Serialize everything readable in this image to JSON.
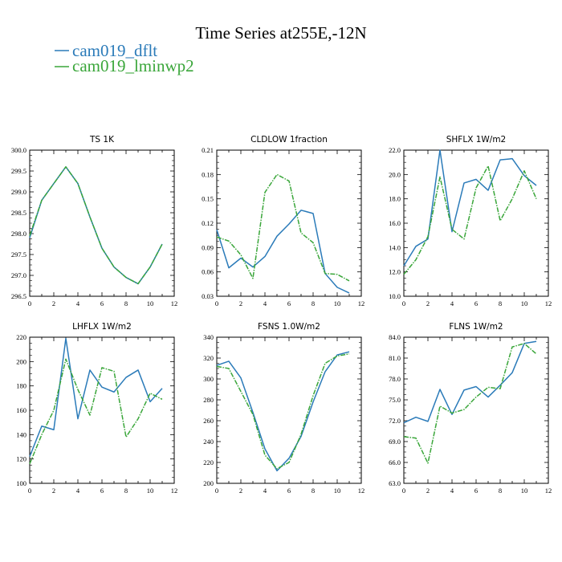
{
  "figure": {
    "title": "Time Series at255E,-12N",
    "legend": [
      {
        "label": "cam019_dflt",
        "color": "#2b7bb9",
        "dash": "solid"
      },
      {
        "label": "cam019_lminwp2",
        "color": "#3aa63a",
        "dash": "dashed"
      }
    ]
  },
  "chart_data": [
    {
      "type": "line",
      "title": "TS   1K",
      "xlim": [
        0,
        12
      ],
      "xticks": [
        0,
        2,
        4,
        6,
        8,
        10,
        12
      ],
      "ylim": [
        296.5,
        300.0
      ],
      "yticks": [
        "296.5",
        "297.0",
        "297.5",
        "298.0",
        "298.5",
        "299.0",
        "299.5",
        "300.0"
      ],
      "x": [
        0,
        1,
        2,
        3,
        4,
        5,
        6,
        7,
        8,
        9,
        10,
        11
      ],
      "series": [
        {
          "name": "cam019_dflt",
          "values": [
            297.9,
            298.8,
            299.2,
            299.6,
            299.2,
            298.4,
            297.65,
            297.2,
            296.95,
            296.8,
            297.2,
            297.75
          ]
        },
        {
          "name": "cam019_lminwp2",
          "values": [
            297.95,
            298.8,
            299.2,
            299.6,
            299.2,
            298.4,
            297.65,
            297.2,
            296.95,
            296.8,
            297.2,
            297.75
          ]
        }
      ]
    },
    {
      "type": "line",
      "title": "CLDLOW   1fraction",
      "xlim": [
        0,
        12
      ],
      "xticks": [
        0,
        2,
        4,
        6,
        8,
        10,
        12
      ],
      "ylim": [
        0.03,
        0.21
      ],
      "yticks": [
        "0.03",
        "0.06",
        "0.09",
        "0.12",
        "0.15",
        "0.18",
        "0.21"
      ],
      "x": [
        0,
        1,
        2,
        3,
        4,
        5,
        6,
        7,
        8,
        9,
        10,
        11
      ],
      "series": [
        {
          "name": "cam019_dflt",
          "values": [
            0.112,
            0.065,
            0.077,
            0.066,
            0.079,
            0.104,
            0.119,
            0.136,
            0.132,
            0.058,
            0.041,
            0.034
          ]
        },
        {
          "name": "cam019_lminwp2",
          "values": [
            0.103,
            0.098,
            0.081,
            0.052,
            0.158,
            0.18,
            0.172,
            0.108,
            0.096,
            0.058,
            0.057,
            0.049
          ]
        }
      ]
    },
    {
      "type": "line",
      "title": "SHFLX   1W/m2",
      "xlim": [
        0,
        12
      ],
      "xticks": [
        0,
        2,
        4,
        6,
        8,
        10,
        12
      ],
      "ylim": [
        10.0,
        22.0
      ],
      "yticks": [
        "10.0",
        "12.0",
        "14.0",
        "16.0",
        "18.0",
        "20.0",
        "22.0"
      ],
      "x": [
        0,
        1,
        2,
        3,
        4,
        5,
        6,
        7,
        8,
        9,
        10,
        11
      ],
      "series": [
        {
          "name": "cam019_dflt",
          "values": [
            12.5,
            14.1,
            14.7,
            22.0,
            15.3,
            19.3,
            19.6,
            18.7,
            21.2,
            21.3,
            19.9,
            19.1
          ]
        },
        {
          "name": "cam019_lminwp2",
          "values": [
            11.8,
            13.0,
            14.9,
            19.8,
            15.5,
            14.7,
            18.9,
            20.7,
            16.2,
            18.0,
            20.3,
            18.0
          ]
        }
      ]
    },
    {
      "type": "line",
      "title": "LHFLX   1W/m2",
      "xlim": [
        0,
        12
      ],
      "xticks": [
        0,
        2,
        4,
        6,
        8,
        10,
        12
      ],
      "ylim": [
        100,
        220
      ],
      "yticks": [
        "100",
        "120",
        "140",
        "160",
        "180",
        "200",
        "220"
      ],
      "x": [
        0,
        1,
        2,
        3,
        4,
        5,
        6,
        7,
        8,
        9,
        10,
        11
      ],
      "series": [
        {
          "name": "cam019_dflt",
          "values": [
            122,
            147,
            144,
            219,
            153,
            193,
            179,
            175,
            187,
            193,
            167,
            178
          ]
        },
        {
          "name": "cam019_lminwp2",
          "values": [
            116,
            140,
            160,
            202,
            177,
            156,
            195,
            192,
            138,
            153,
            174,
            169
          ]
        }
      ]
    },
    {
      "type": "line",
      "title": "FSNS   1.0W/m2",
      "xlim": [
        0,
        12
      ],
      "xticks": [
        0,
        2,
        4,
        6,
        8,
        10,
        12
      ],
      "ylim": [
        200,
        340
      ],
      "yticks": [
        "200",
        "220",
        "240",
        "260",
        "280",
        "300",
        "320",
        "340"
      ],
      "x": [
        0,
        1,
        2,
        3,
        4,
        5,
        6,
        7,
        8,
        9,
        10,
        11
      ],
      "series": [
        {
          "name": "cam019_dflt",
          "values": [
            313,
            317,
            301,
            268,
            233,
            212,
            224,
            245,
            278,
            307,
            323,
            326
          ]
        },
        {
          "name": "cam019_lminwp2",
          "values": [
            312,
            310,
            288,
            266,
            227,
            214,
            220,
            247,
            284,
            315,
            322,
            324
          ]
        }
      ]
    },
    {
      "type": "line",
      "title": "FLNS   1W/m2",
      "xlim": [
        0,
        12
      ],
      "xticks": [
        0,
        2,
        4,
        6,
        8,
        10,
        12
      ],
      "ylim": [
        63.0,
        84.0
      ],
      "yticks": [
        "63.0",
        "66.0",
        "69.0",
        "72.0",
        "75.0",
        "78.0",
        "81.0",
        "84.0"
      ],
      "x": [
        0,
        1,
        2,
        3,
        4,
        5,
        6,
        7,
        8,
        9,
        10,
        11
      ],
      "series": [
        {
          "name": "cam019_dflt",
          "values": [
            71.7,
            72.5,
            71.9,
            76.5,
            72.9,
            76.4,
            76.9,
            75.4,
            77.1,
            78.9,
            83.1,
            83.4
          ]
        },
        {
          "name": "cam019_lminwp2",
          "values": [
            69.7,
            69.5,
            65.9,
            74.1,
            73.1,
            73.6,
            75.4,
            76.8,
            76.6,
            82.6,
            83.1,
            81.6
          ]
        }
      ]
    }
  ]
}
